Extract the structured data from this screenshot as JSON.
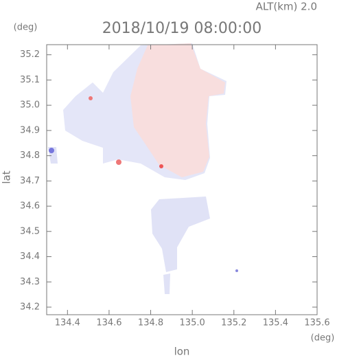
{
  "chart_data": {
    "type": "map",
    "title": "2018/10/19 08:00:00",
    "subtitle": "ALT(km) 2.0",
    "y_unit": "(deg)",
    "x_unit": "(deg)",
    "ylabel": "lat",
    "xlabel": "lon",
    "xlim": [
      134.3,
      135.6
    ],
    "ylim": [
      34.17,
      35.24
    ],
    "xticks": [
      134.4,
      134.6,
      134.8,
      {
        "value": 135,
        "label": "135.0"
      },
      135.2,
      135.4,
      135.6
    ],
    "yticks": [
      34.2,
      34.3,
      34.4,
      34.5,
      34.6,
      34.7,
      34.8,
      34.9,
      {
        "value": 35,
        "label": "35.0"
      },
      35.1,
      35.2
    ]
  }
}
